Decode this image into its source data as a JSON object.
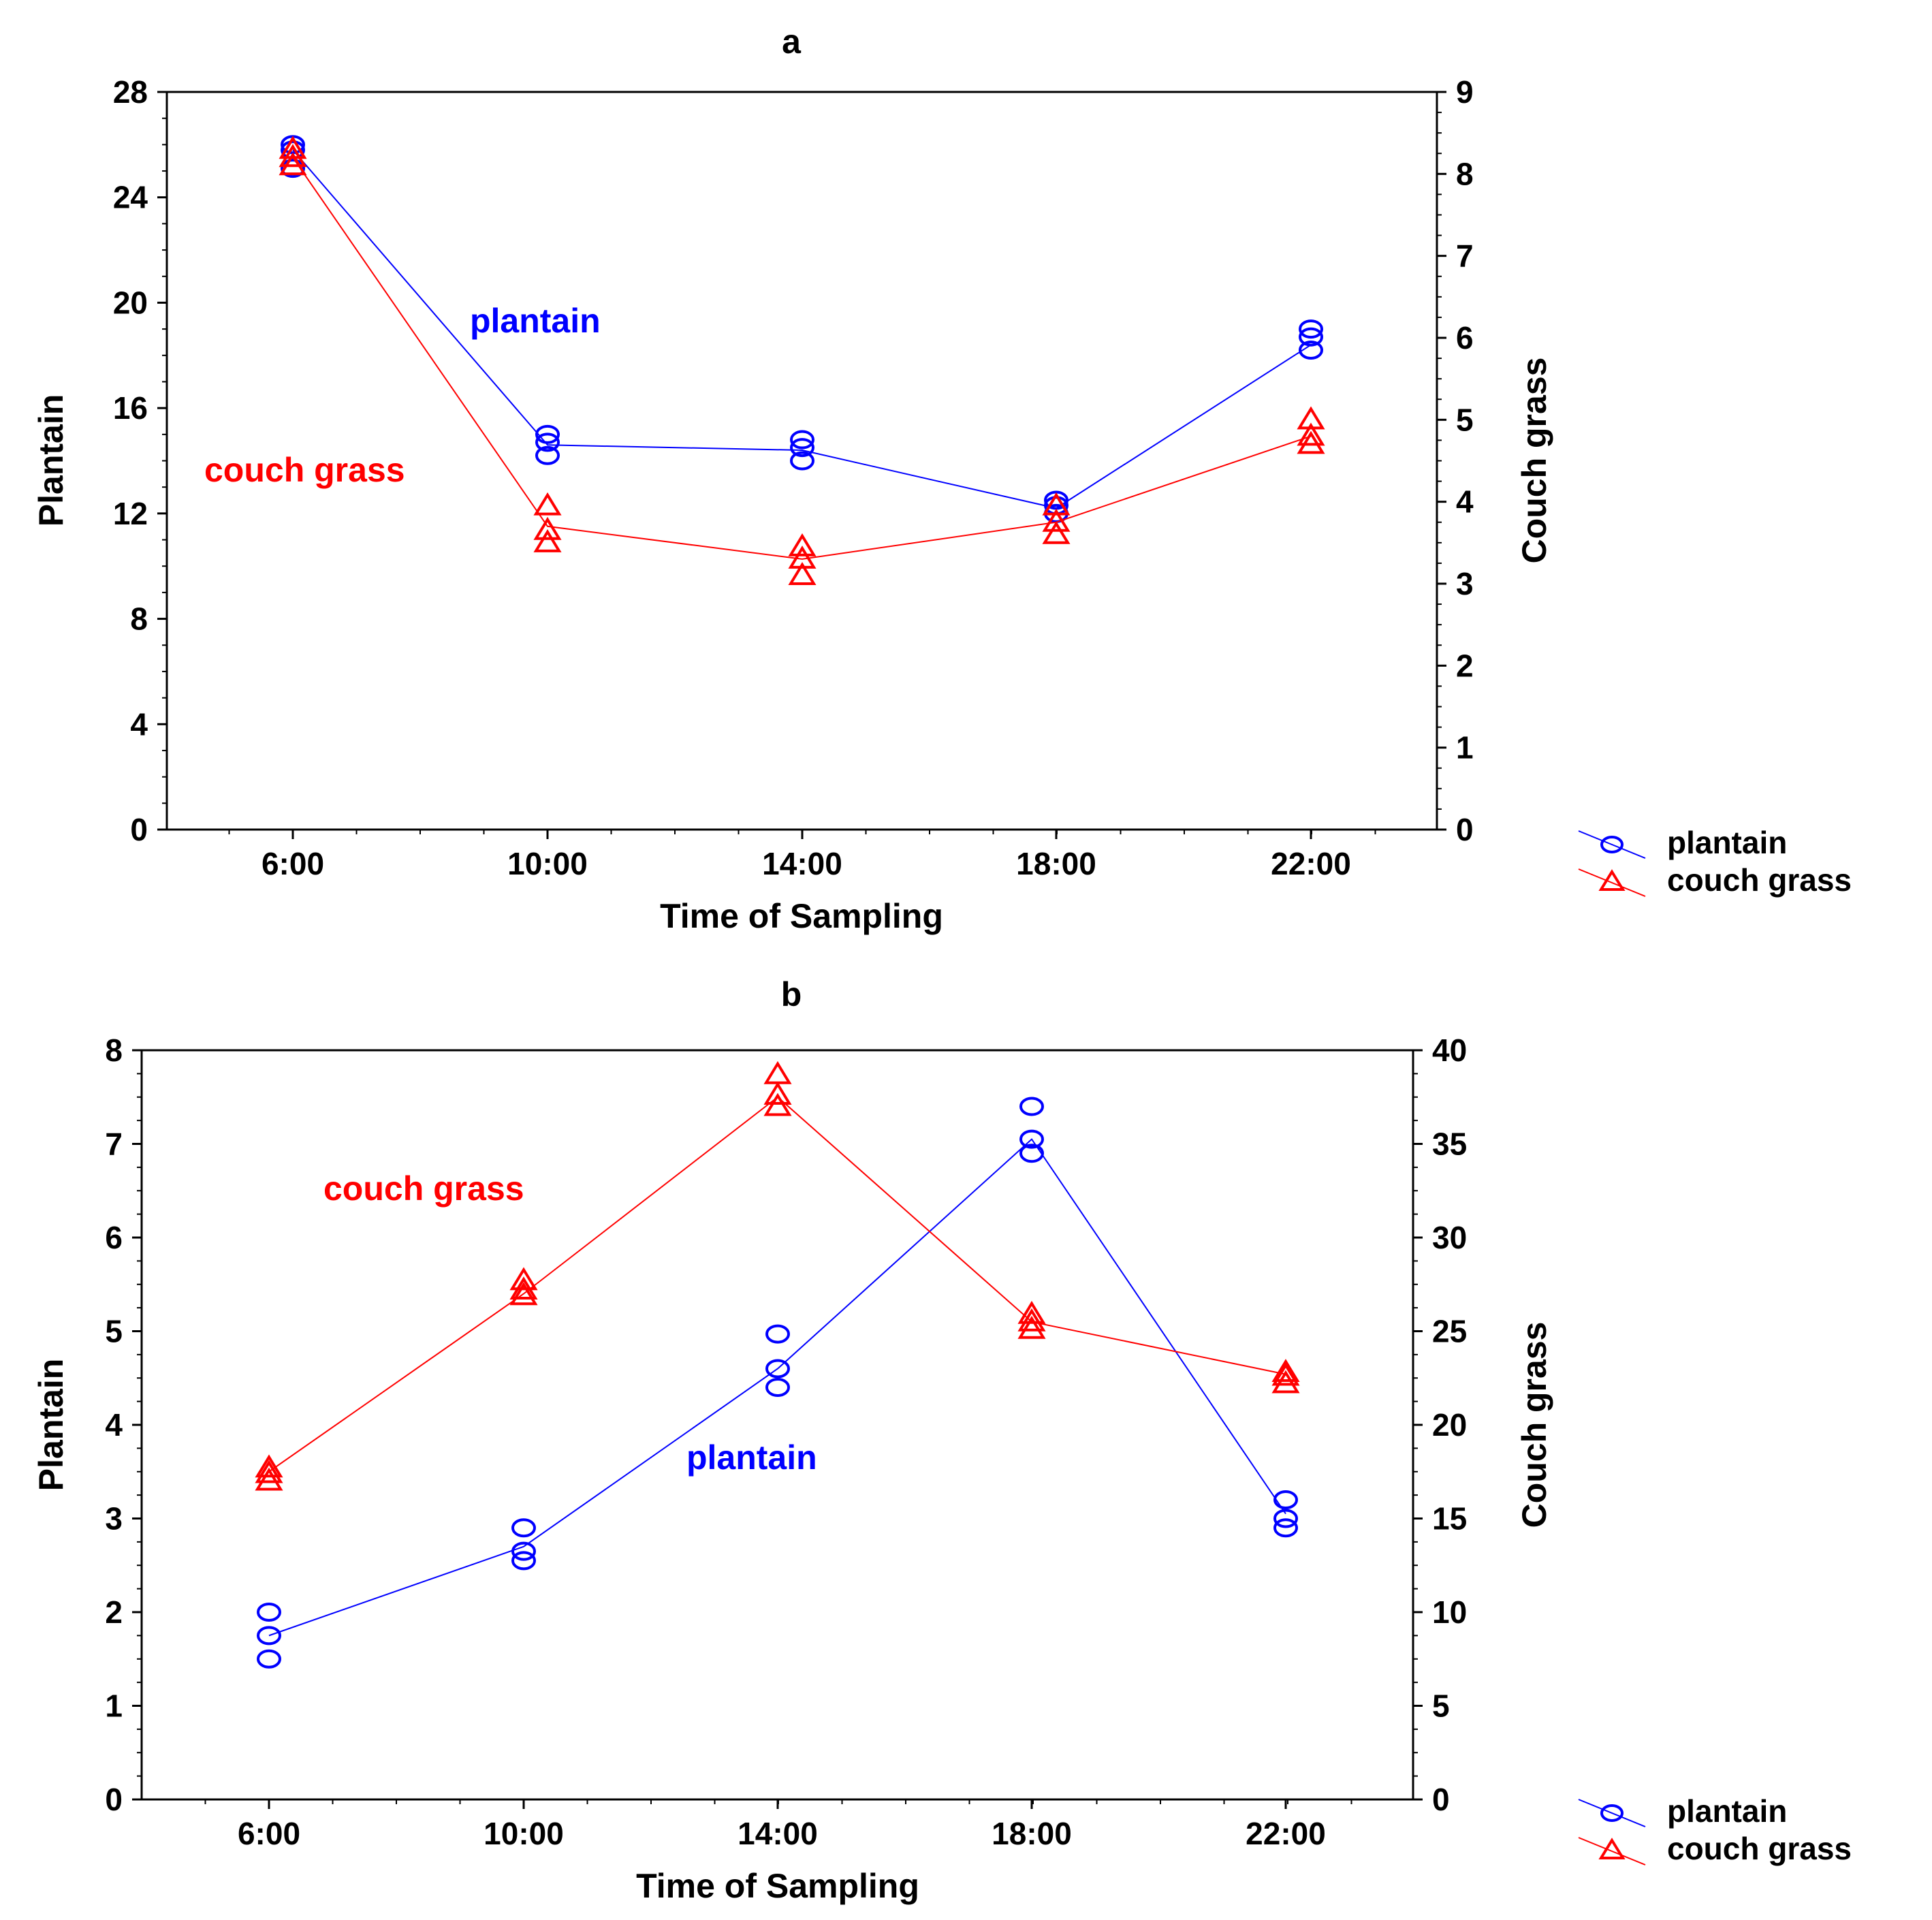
{
  "figure": {
    "colors": {
      "plantain": "#0000ff",
      "couch_grass": "#ff0000",
      "axis": "#000000",
      "background": "#ffffff"
    }
  },
  "chart_data": [
    {
      "type": "scatter",
      "title": "a",
      "xlabel": "Time of Sampling",
      "ylabel": "Plantain",
      "ylabel_right": "Couch grass",
      "categories": [
        "6:00",
        "10:00",
        "14:00",
        "18:00",
        "22:00"
      ],
      "ylim": [
        0,
        28
      ],
      "yticks": [
        0,
        4,
        8,
        12,
        16,
        20,
        24,
        28
      ],
      "ylim_right": [
        0,
        9
      ],
      "yticks_right": [
        0,
        1,
        2,
        3,
        4,
        5,
        6,
        7,
        8,
        9
      ],
      "grid": false,
      "legend": {
        "position": "right-bottom",
        "entries": [
          "plantain",
          "couch grass"
        ]
      },
      "annotations": [
        {
          "text": "plantain",
          "series": "plantain"
        },
        {
          "text": "couch grass",
          "series": "couch grass"
        }
      ],
      "series": [
        {
          "name": "plantain",
          "axis": "left",
          "marker": "circle",
          "color": "#0000ff",
          "means": [
            25.8,
            14.6,
            14.4,
            12.2,
            18.4
          ],
          "points": [
            [
              25.1,
              26.0,
              25.8
            ],
            [
              14.2,
              14.7,
              15.0
            ],
            [
              14.0,
              14.5,
              14.8
            ],
            [
              12.0,
              12.3,
              12.5
            ],
            [
              18.2,
              18.7,
              19.0
            ]
          ]
        },
        {
          "name": "couch grass",
          "axis": "right",
          "marker": "triangle",
          "color": "#ff0000",
          "means": [
            8.2,
            3.7,
            3.3,
            3.75,
            4.8
          ],
          "points": [
            [
              8.1,
              8.3,
              8.2
            ],
            [
              3.5,
              3.65,
              3.95
            ],
            [
              3.1,
              3.3,
              3.45
            ],
            [
              3.6,
              3.75,
              3.95
            ],
            [
              4.7,
              4.8,
              5.0
            ]
          ]
        }
      ]
    },
    {
      "type": "scatter",
      "title": "b",
      "xlabel": "Time of Sampling",
      "ylabel": "Plantain",
      "ylabel_right": "Couch grass",
      "categories": [
        "6:00",
        "10:00",
        "14:00",
        "18:00",
        "22:00"
      ],
      "ylim": [
        0,
        8
      ],
      "yticks": [
        0,
        1,
        2,
        3,
        4,
        5,
        6,
        7,
        8
      ],
      "ylim_right": [
        0,
        40
      ],
      "yticks_right": [
        0,
        5,
        10,
        15,
        20,
        25,
        30,
        35,
        40
      ],
      "grid": false,
      "legend": {
        "position": "right-bottom",
        "entries": [
          "plantain",
          "couch grass"
        ]
      },
      "annotations": [
        {
          "text": "couch grass",
          "series": "couch grass"
        },
        {
          "text": "plantain",
          "series": "plantain"
        }
      ],
      "series": [
        {
          "name": "plantain",
          "axis": "left",
          "marker": "circle",
          "color": "#0000ff",
          "means": [
            1.75,
            2.7,
            4.6,
            7.05,
            3.05
          ],
          "points": [
            [
              1.5,
              1.75,
              2.0
            ],
            [
              2.55,
              2.65,
              2.9
            ],
            [
              4.4,
              4.6,
              4.97
            ],
            [
              6.9,
              7.05,
              7.4
            ],
            [
              2.9,
              3.0,
              3.2
            ]
          ]
        },
        {
          "name": "couch grass",
          "axis": "right",
          "marker": "triangle",
          "color": "#ff0000",
          "means": [
            17.5,
            27.0,
            37.5,
            25.5,
            22.7
          ],
          "points": [
            [
              17.0,
              17.7,
              17.4
            ],
            [
              26.9,
              27.7,
              27.2
            ],
            [
              37.0,
              38.7,
              37.6
            ],
            [
              25.1,
              25.9,
              25.5
            ],
            [
              22.2,
              22.8,
              22.6
            ]
          ]
        }
      ]
    }
  ]
}
